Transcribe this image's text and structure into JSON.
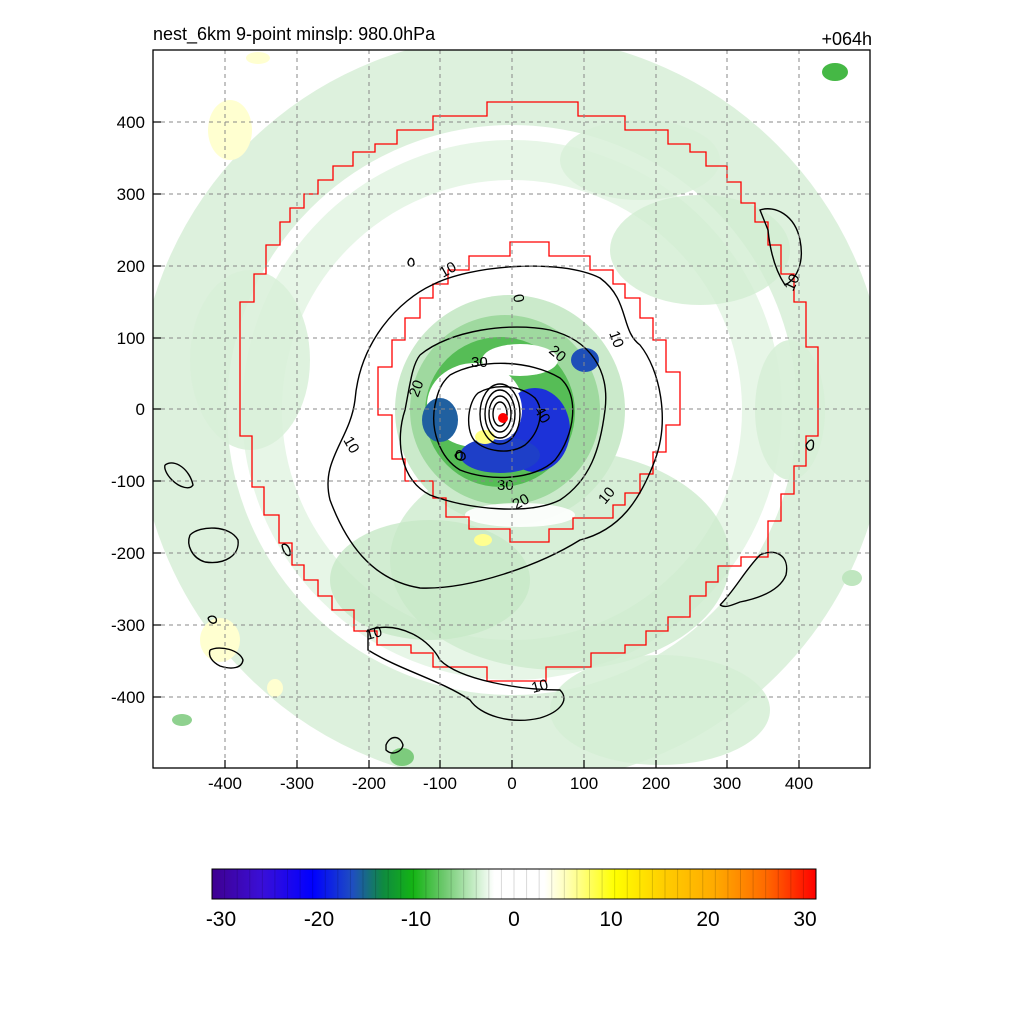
{
  "title_left": "nest_6km  9-point minslp: 980.0hPa",
  "title_right": "+064h",
  "chart_data": {
    "type": "heatmap",
    "title": "nest_6km  9-point minslp: 980.0hPa",
    "forecast_hour": "+064h",
    "xlim": [
      -500,
      500
    ],
    "ylim": [
      -500,
      500
    ],
    "x_ticks": [
      -400,
      -300,
      -200,
      -100,
      0,
      100,
      200,
      300,
      400
    ],
    "y_ticks": [
      400,
      300,
      200,
      100,
      0,
      -100,
      -200,
      -300,
      -400
    ],
    "x_tick_labels": [
      "-400",
      "-300",
      "-200",
      "-100",
      "0",
      "100",
      "200",
      "300",
      "400"
    ],
    "y_tick_labels": [
      "400",
      "300",
      "200",
      "100",
      "0",
      "-100",
      "-200",
      "-300",
      "-400"
    ],
    "grid": true,
    "colorbar": {
      "min": -30,
      "max": 30,
      "tick_values": [
        -30,
        -20,
        -10,
        0,
        10,
        20,
        30
      ],
      "tick_labels": [
        "-30",
        "-20",
        "-10",
        "0",
        "10",
        "20",
        "30"
      ],
      "stops": [
        {
          "v": -30,
          "color": "#3f0090"
        },
        {
          "v": -25,
          "color": "#3a0fd8"
        },
        {
          "v": -20,
          "color": "#0000ff"
        },
        {
          "v": -16,
          "color": "#1f4fc0"
        },
        {
          "v": -13,
          "color": "#0f8a40"
        },
        {
          "v": -10,
          "color": "#14b414"
        },
        {
          "v": -7,
          "color": "#6cc86c"
        },
        {
          "v": -4,
          "color": "#c4ecc4"
        },
        {
          "v": -2,
          "color": "#ffffff"
        },
        {
          "v": 3,
          "color": "#ffffff"
        },
        {
          "v": 5,
          "color": "#ffffc0"
        },
        {
          "v": 10,
          "color": "#ffff00"
        },
        {
          "v": 15,
          "color": "#ffcc00"
        },
        {
          "v": 20,
          "color": "#ffaa00"
        },
        {
          "v": 25,
          "color": "#ff6a00"
        },
        {
          "v": 30,
          "color": "#ff0000"
        }
      ]
    },
    "storm_center": {
      "x": -12,
      "y": -12,
      "color": "#ff0000"
    },
    "contour_labels": [
      "10",
      "10",
      "20",
      "30",
      "40",
      "20",
      "30",
      "0",
      "10",
      "10",
      "10",
      "10",
      "0",
      "20",
      "10"
    ],
    "colors": {
      "red_boundary": "#ff0000",
      "contours": "#000000",
      "grid": "#888888"
    }
  }
}
